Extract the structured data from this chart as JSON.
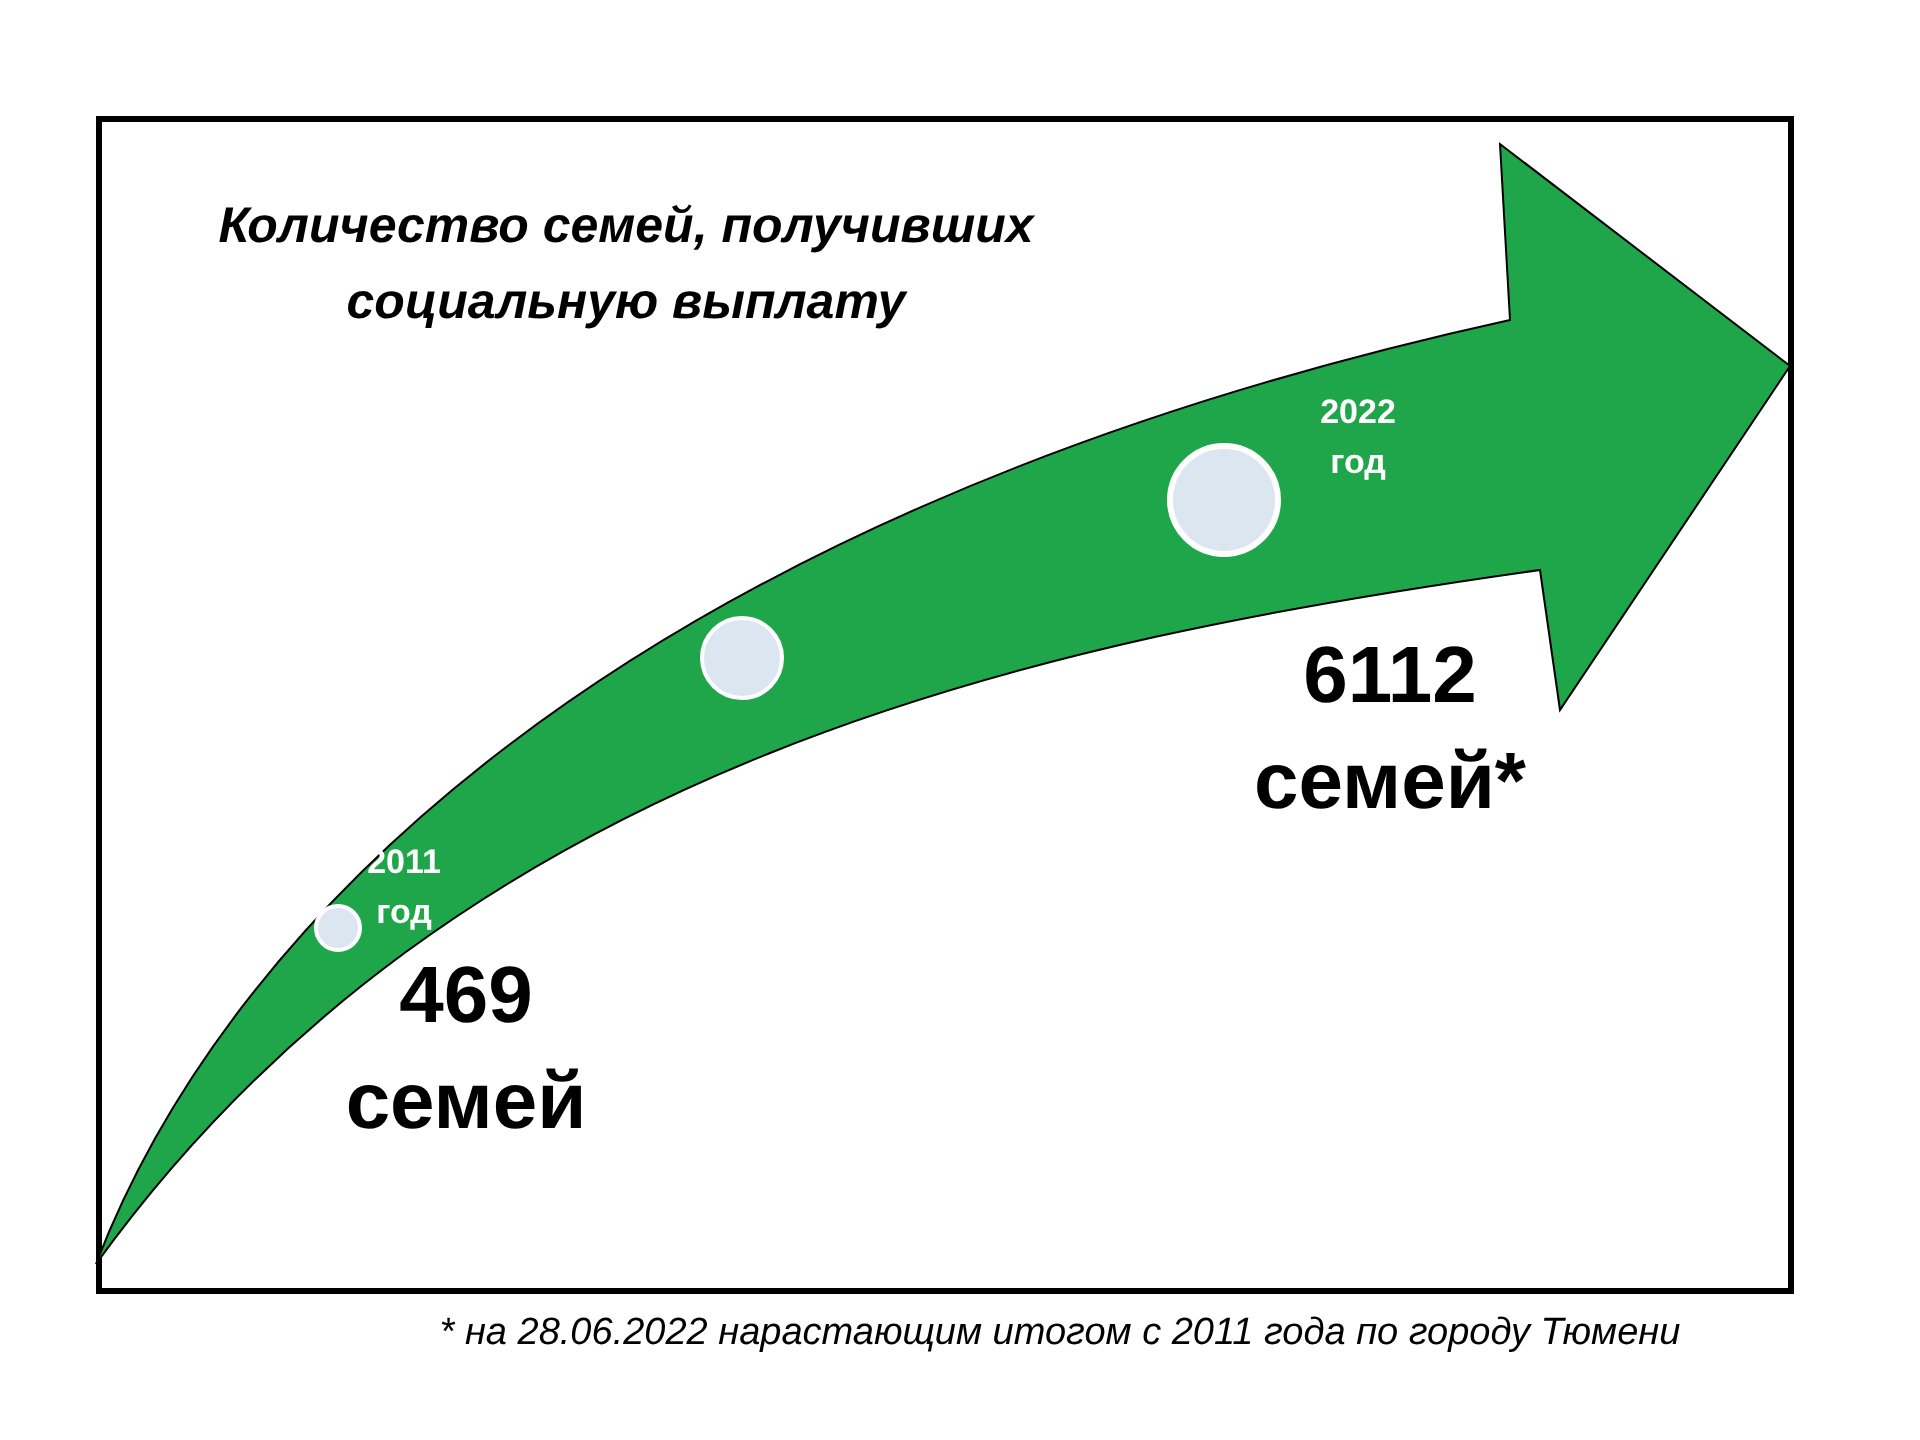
{
  "chart_data": {
    "type": "other",
    "title": "Количество семей, получивших социальную выплату",
    "categories": [
      "2011 год",
      "2022 год"
    ],
    "values": [
      469,
      6112
    ],
    "value_labels": [
      "469 семей",
      "6112 семей*"
    ],
    "annotations": [
      "* на 28.06.2022 нарастающим итогом с 2011 года по городу Тюмени"
    ]
  }
}
